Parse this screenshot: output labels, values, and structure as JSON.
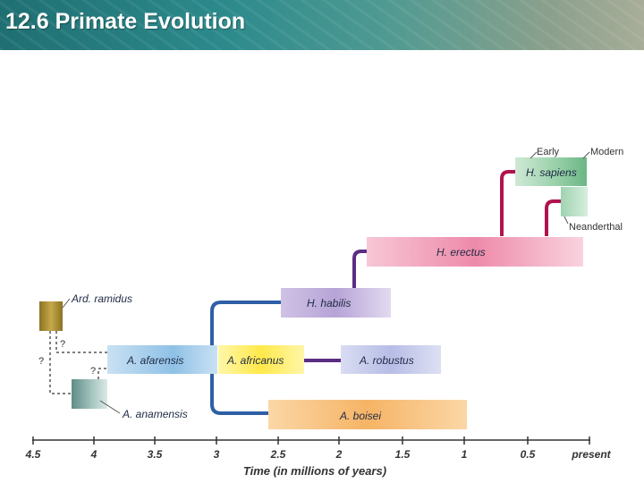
{
  "header": {
    "title": "12.6 Primate Evolution"
  },
  "diagram": {
    "species": {
      "sapiens": "H. sapiens",
      "erectus": "H. erectus",
      "habilis": "H. habilis",
      "afarensis": "A. afarensis",
      "africanus": "A. africanus",
      "robustus": "A. robustus",
      "boisei": "A. boisei",
      "ramidus": "Ard. ramidus",
      "anamensis": "A. anamensis"
    },
    "annotations": {
      "early": "Early",
      "modern": "Modern",
      "neanderthal": "Neanderthal",
      "q1": "?",
      "q2": "?",
      "q3": "?"
    },
    "axis": {
      "title": "Time (in millions of years)",
      "ticks": [
        "4.5",
        "4",
        "3.5",
        "3",
        "2.5",
        "2",
        "1.5",
        "1",
        "0.5",
        "present"
      ]
    },
    "colors": {
      "blue_line": "#2f5fa6",
      "purple_line": "#5a2d82",
      "red_line": "#b0134e"
    }
  }
}
